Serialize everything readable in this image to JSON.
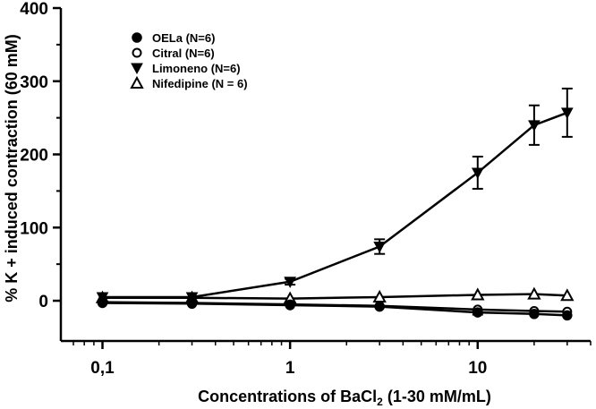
{
  "chart_data": {
    "type": "line",
    "xscale": "log",
    "xlabel": "Concentrations of BaCl2 (1-30 mM/mL)",
    "xlabel_main": "Concentrations of BaCl",
    "xlabel_sub": "2",
    "xlabel_tail": " (1-30 mM/mL)",
    "ylabel": "% K + induced contraction (60 mM)",
    "xlim": [
      0.06,
      40
    ],
    "ylim": [
      -55,
      400
    ],
    "x_ticks": [
      0.1,
      1,
      10
    ],
    "x_tick_labels": [
      "0,1",
      "1",
      "10"
    ],
    "y_ticks": [
      0,
      100,
      200,
      300,
      400
    ],
    "y_tick_labels": [
      "0",
      "100",
      "200",
      "300",
      "400"
    ],
    "grid": false,
    "legend_position": "top-left",
    "series": [
      {
        "name": "OELa (N=6)",
        "marker": "circle-filled",
        "x": [
          0.1,
          0.3,
          1,
          3,
          10,
          20,
          30
        ],
        "y": [
          -3,
          -4,
          -6,
          -8,
          -16,
          -18,
          -20
        ],
        "err": [
          2,
          2,
          2,
          2,
          3,
          2,
          2
        ]
      },
      {
        "name": "Citral (N=6)",
        "marker": "circle-open",
        "x": [
          0.1,
          0.3,
          1,
          3,
          10,
          20,
          30
        ],
        "y": [
          -2,
          -3,
          -5,
          -7,
          -12,
          -14,
          -15
        ],
        "err": [
          2,
          2,
          2,
          2,
          2,
          2,
          2
        ]
      },
      {
        "name": "Limoneno (N=6)",
        "marker": "triangle-down-filled",
        "x": [
          0.1,
          0.3,
          1,
          3,
          10,
          20,
          30
        ],
        "y": [
          5,
          5,
          26,
          74,
          175,
          240,
          257
        ],
        "err": [
          2,
          2,
          4,
          10,
          22,
          27,
          33
        ]
      },
      {
        "name": "Nifedipine (N = 6)",
        "marker": "triangle-up-open",
        "x": [
          0.1,
          0.3,
          1,
          3,
          10,
          20,
          30
        ],
        "y": [
          4,
          4,
          3,
          5,
          8,
          9,
          7
        ],
        "err": [
          1,
          1,
          1,
          1,
          1,
          1,
          1
        ]
      }
    ]
  }
}
